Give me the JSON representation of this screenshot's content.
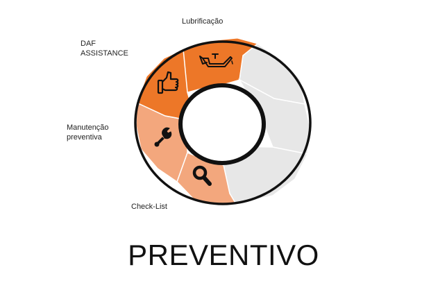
{
  "title": "PREVENTIVO",
  "colors": {
    "dark_orange": "#ED7728",
    "light_orange": "#F3A77D",
    "inactive_gray": "#E7E7E7",
    "outline": "#111111"
  },
  "segments": [
    {
      "label": "Lubrificação",
      "icon": "oil-can-icon",
      "active": true,
      "color": "#ED7728"
    },
    {
      "label": "",
      "icon": "",
      "active": false,
      "color": "#E7E7E7"
    },
    {
      "label": "",
      "icon": "",
      "active": false,
      "color": "#E7E7E7"
    },
    {
      "label": "",
      "icon": "",
      "active": false,
      "color": "#E7E7E7"
    },
    {
      "label": "Check-List",
      "icon": "magnifier-icon",
      "active": true,
      "color": "#F3A77D"
    },
    {
      "label": "Manutenção\npreventiva",
      "icon": "wrench-icon",
      "active": true,
      "color": "#F3A77D"
    },
    {
      "label": "DAF\nASSISTANCE",
      "icon": "thumbs-up-icon",
      "active": true,
      "color": "#ED7728"
    }
  ]
}
